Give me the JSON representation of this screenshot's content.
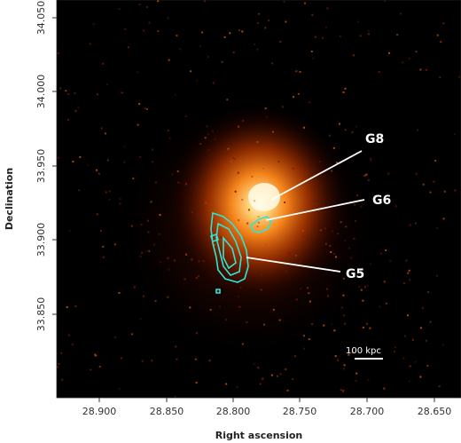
{
  "axes": {
    "xlabel": "Right ascension",
    "ylabel": "Declination",
    "xticks": [
      "28.900",
      "28.850",
      "28.800",
      "28.750",
      "28.700",
      "28.650"
    ],
    "yticks": [
      "34.050",
      "34.000",
      "33.950",
      "33.900",
      "33.850"
    ]
  },
  "annotations": {
    "g8": "G8",
    "g6": "G6",
    "g5": "G5",
    "scalebar": "100 kpc"
  },
  "colors": {
    "background": "#000000",
    "emission_core": "#fff4d6",
    "emission_mid": "#ff8a1c",
    "emission_outer": "#7a1a00",
    "contour": "#2ee6d6",
    "annotation": "#ffffff"
  }
}
